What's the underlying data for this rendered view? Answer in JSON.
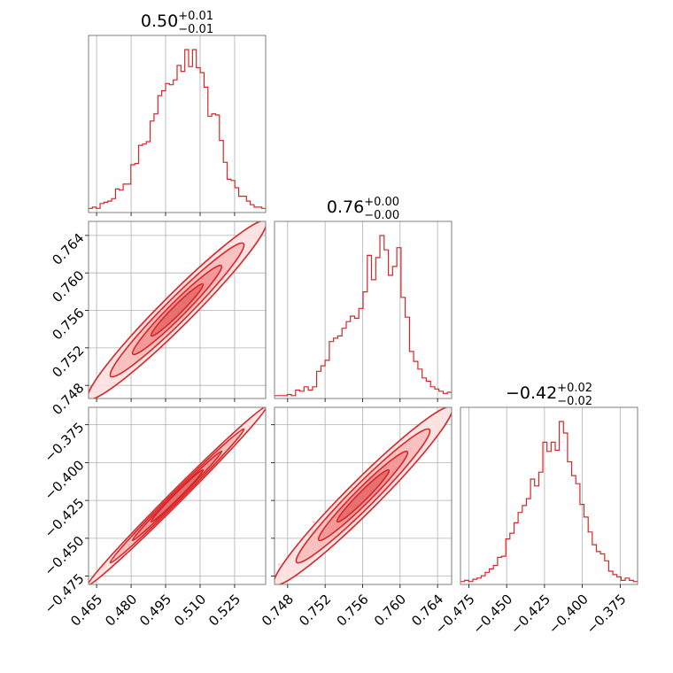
{
  "chart_data": {
    "type": "corner",
    "color": "#d62728",
    "parameters": [
      {
        "title": {
          "median": "0.50",
          "plus": "+0.01",
          "minus": "−0.01"
        },
        "range": [
          0.4615,
          0.5385
        ],
        "ticks": [
          "0.465",
          "0.480",
          "0.495",
          "0.510",
          "0.525"
        ],
        "tick_values": [
          0.465,
          0.48,
          0.495,
          0.51,
          0.525
        ],
        "hist_counts": [
          2,
          3,
          2,
          6,
          7,
          8,
          10,
          18,
          17,
          22,
          22,
          38,
          39,
          54,
          55,
          57,
          74,
          80,
          95,
          99,
          105,
          104,
          108,
          120,
          115,
          133,
          119,
          133,
          118,
          114,
          102,
          78,
          80,
          79,
          58,
          40,
          26,
          25,
          19,
          12,
          12,
          8,
          5,
          3,
          3,
          2
        ]
      },
      {
        "title": {
          "median": "0.76",
          "plus": "+0.00",
          "minus": "−0.00"
        },
        "range": [
          0.7466,
          0.7655
        ],
        "ticks": [
          "0.748",
          "0.752",
          "0.756",
          "0.760",
          "0.764"
        ],
        "tick_values": [
          0.748,
          0.752,
          0.756,
          0.76,
          0.764
        ],
        "hist_counts": [
          1,
          1,
          1,
          2,
          1,
          6,
          5,
          9,
          6,
          9,
          23,
          28,
          33,
          50,
          53,
          55,
          62,
          68,
          73,
          71,
          80,
          95,
          128,
          106,
          126,
          146,
          133,
          110,
          118,
          135,
          90,
          72,
          41,
          32,
          25,
          17,
          14,
          9,
          7,
          5,
          3,
          4
        ]
      },
      {
        "title": {
          "median": "−0.42",
          "plus": "+0.02",
          "minus": "−0.02"
        },
        "range": [
          -0.4805,
          -0.3635
        ],
        "ticks": [
          "−0.475",
          "−0.450",
          "−0.425",
          "−0.400",
          "−0.375"
        ],
        "tick_values": [
          -0.475,
          -0.45,
          -0.425,
          -0.4,
          -0.375
        ],
        "hist_counts": [
          1,
          2,
          1,
          3,
          4,
          6,
          9,
          12,
          15,
          22,
          23,
          38,
          43,
          52,
          61,
          67,
          73,
          90,
          84,
          96,
          122,
          114,
          122,
          115,
          140,
          130,
          105,
          93,
          86,
          68,
          57,
          44,
          33,
          27,
          25,
          19,
          10,
          7,
          5,
          2,
          4,
          2,
          1
        ]
      }
    ],
    "pairs": [
      {
        "row": 1,
        "col": 0,
        "corr": 0.97
      },
      {
        "row": 2,
        "col": 0,
        "corr": 0.995
      },
      {
        "row": 2,
        "col": 1,
        "corr": 0.97
      }
    ]
  }
}
